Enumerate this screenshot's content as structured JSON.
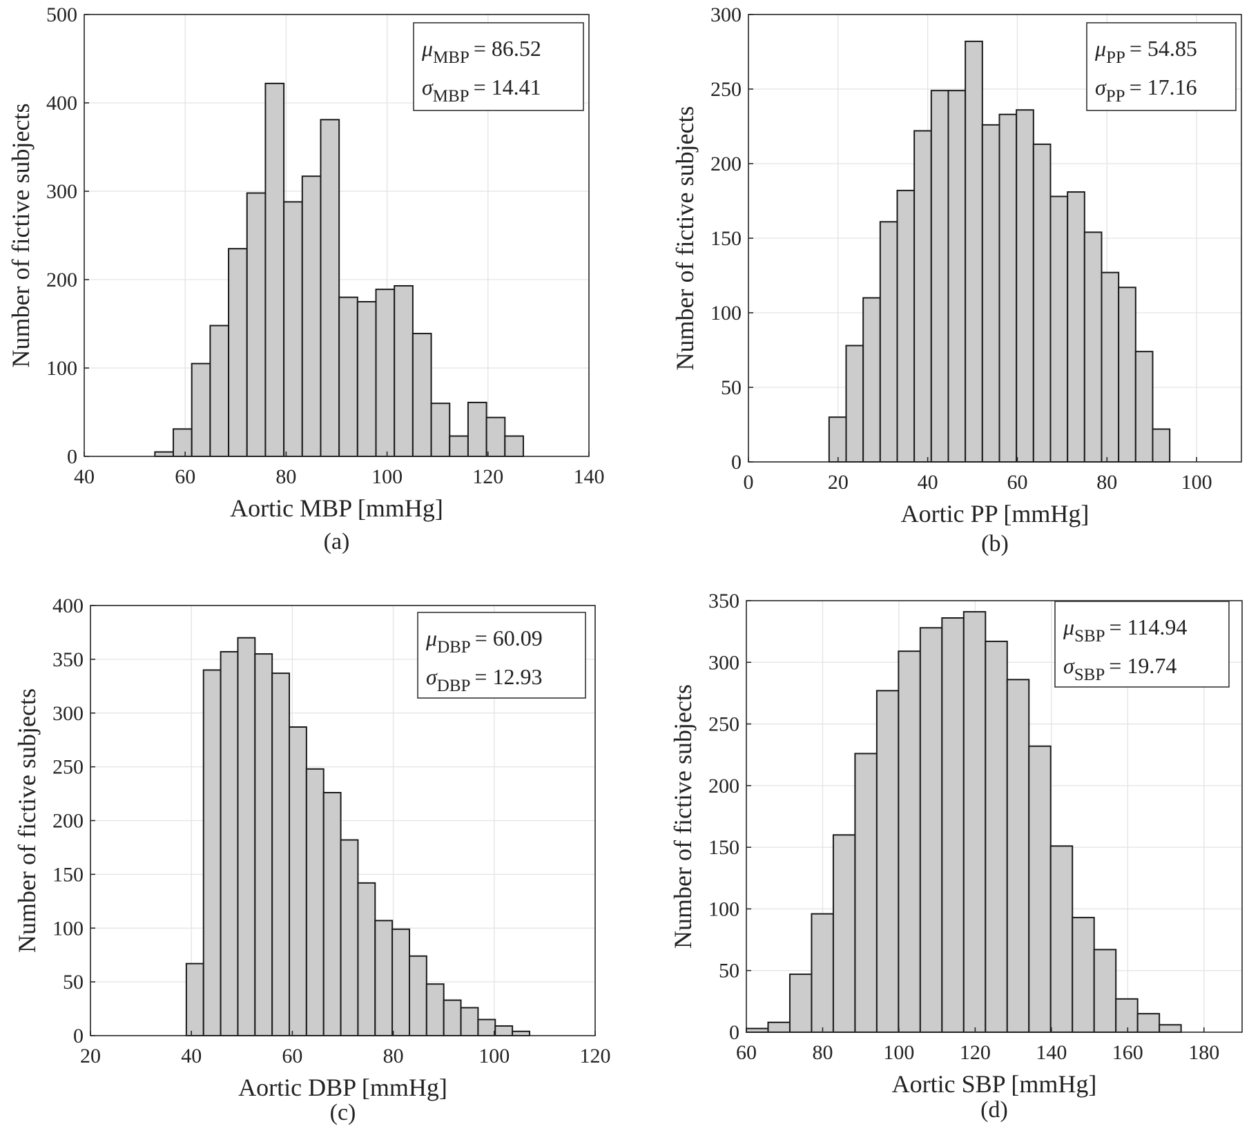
{
  "chart_data": [
    {
      "type": "bar",
      "panel_id": "(a)",
      "xlabel": "Aortic MBP [mmHg]",
      "ylabel": "Number of fictive subjects",
      "xlim": [
        40,
        140
      ],
      "ylim": [
        0,
        500
      ],
      "xticks": [
        40,
        60,
        80,
        100,
        120,
        140
      ],
      "yticks": [
        0,
        100,
        200,
        300,
        400,
        500
      ],
      "grid": true,
      "bin_start": 54,
      "bin_width": 3.65,
      "values": [
        5,
        31,
        105,
        148,
        235,
        298,
        422,
        288,
        317,
        381,
        180,
        175,
        189,
        193,
        139,
        60,
        23,
        61,
        44,
        23
      ],
      "stats": {
        "mu_label": "μ",
        "mu_sub": "MBP",
        "mu_value": "= 86.52",
        "sigma_label": "σ",
        "sigma_sub": "MBP",
        "sigma_value": "= 14.41"
      }
    },
    {
      "type": "bar",
      "panel_id": "(b)",
      "xlabel": "Aortic PP [mmHg]",
      "ylabel": "Number of fictive subjects",
      "xlim": [
        0,
        110
      ],
      "ylim": [
        0,
        300
      ],
      "xticks": [
        0,
        20,
        40,
        60,
        80,
        100
      ],
      "yticks": [
        0,
        50,
        100,
        150,
        200,
        250,
        300
      ],
      "grid": true,
      "bin_start": 18,
      "bin_width": 3.8,
      "values": [
        30,
        78,
        110,
        161,
        182,
        222,
        249,
        249,
        282,
        226,
        233,
        236,
        213,
        178,
        181,
        154,
        127,
        117,
        74,
        22
      ],
      "stats": {
        "mu_label": "μ",
        "mu_sub": "PP",
        "mu_value": "= 54.85",
        "sigma_label": "σ",
        "sigma_sub": "PP",
        "sigma_value": "= 17.16"
      }
    },
    {
      "type": "bar",
      "panel_id": "(c)",
      "xlabel": "Aortic DBP [mmHg]",
      "ylabel": "Number of fictive subjects",
      "xlim": [
        20,
        120
      ],
      "ylim": [
        0,
        400
      ],
      "xticks": [
        20,
        40,
        60,
        80,
        100,
        120
      ],
      "yticks": [
        0,
        50,
        100,
        150,
        200,
        250,
        300,
        350,
        400
      ],
      "grid": true,
      "bin_start": 39,
      "bin_width": 3.4,
      "values": [
        67,
        340,
        357,
        370,
        355,
        337,
        287,
        248,
        226,
        182,
        142,
        107,
        99,
        74,
        48,
        33,
        26,
        15,
        9,
        4
      ],
      "stats": {
        "mu_label": "μ",
        "mu_sub": "DBP",
        "mu_value": "= 60.09",
        "sigma_label": "σ",
        "sigma_sub": "DBP",
        "sigma_value": "= 12.93"
      }
    },
    {
      "type": "bar",
      "panel_id": "(d)",
      "xlabel": "Aortic SBP [mmHg]",
      "ylabel": "Number of fictive subjects",
      "xlim": [
        60,
        190
      ],
      "ylim": [
        0,
        350
      ],
      "xticks": [
        60,
        80,
        100,
        120,
        140,
        160,
        180
      ],
      "yticks": [
        0,
        50,
        100,
        150,
        200,
        250,
        300,
        350
      ],
      "grid": true,
      "bin_start": 60,
      "bin_width": 5.7,
      "values": [
        3,
        8,
        47,
        96,
        160,
        226,
        277,
        309,
        328,
        336,
        341,
        317,
        286,
        232,
        151,
        93,
        67,
        27,
        15,
        6
      ],
      "stats": {
        "mu_label": "μ",
        "mu_sub": "SBP",
        "mu_value": "= 114.94",
        "sigma_label": "σ",
        "sigma_sub": "SBP",
        "sigma_value": "= 19.74"
      }
    }
  ]
}
